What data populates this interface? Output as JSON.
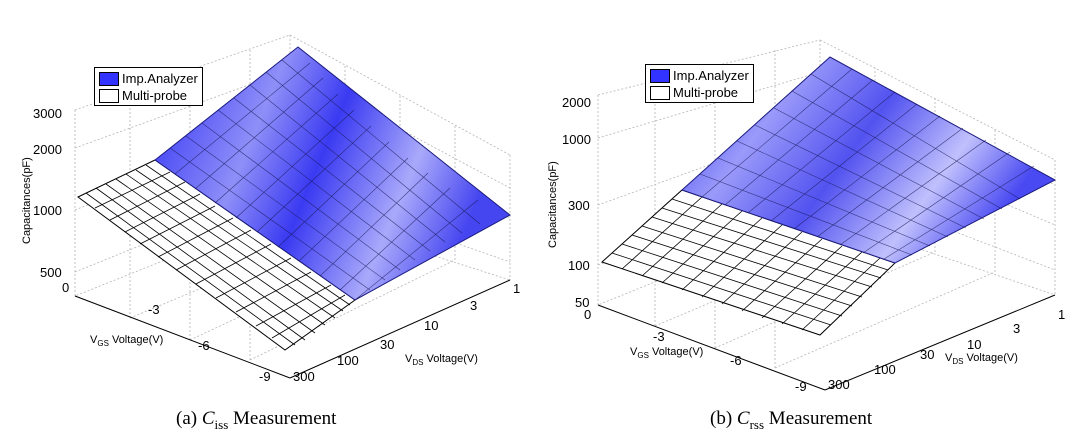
{
  "chart_data": [
    {
      "type": "surface",
      "zlabel": "Capacitances(pF)",
      "xlabel": {
        "main": "V",
        "sub": "DS",
        "rest": " Voltage(V)"
      },
      "ylabel": {
        "main": "V",
        "sub": "GS",
        "rest": " Voltage(V)"
      },
      "z_ticks": [
        "3000",
        "2000",
        "1000",
        "500"
      ],
      "vds_ticks": [
        "1",
        "3",
        "10",
        "30",
        "100",
        "300"
      ],
      "vgs_ticks": [
        "0",
        "-3",
        "-6",
        "-9"
      ],
      "legend": [
        "Imp.Analyzer",
        "Multi-probe"
      ],
      "caption": {
        "prefix": "(a) ",
        "C": "C",
        "sub": "iss",
        "suffix": " Measurement"
      },
      "zlim": [
        500,
        3000
      ],
      "z_scale": "log",
      "xlim_vds": [
        1,
        300
      ],
      "x_scale": "log",
      "ylim_vgs": [
        -9,
        0
      ],
      "grid": true,
      "legend_placement": "top-left",
      "surface_corners_pF": {
        "vds1_vgs0": 2700,
        "vds300_vgs0": 1150,
        "vds1_vgs-9": 950,
        "vds300_vgs-9": 500
      }
    },
    {
      "type": "surface",
      "zlabel": "Capacitances(pF)",
      "xlabel": {
        "main": "V",
        "sub": "DS",
        "rest": " Voltage(V)"
      },
      "ylabel": {
        "main": "V",
        "sub": "GS",
        "rest": " Voltage(V)"
      },
      "z_ticks": [
        "2000",
        "1000",
        "300",
        "100",
        "50"
      ],
      "vds_ticks": [
        "1",
        "3",
        "10",
        "30",
        "100",
        "300"
      ],
      "vgs_ticks": [
        "0",
        "-3",
        "-6",
        "-9"
      ],
      "legend": [
        "Imp.Analyzer",
        "Multi-probe"
      ],
      "caption": {
        "prefix": "(b) ",
        "C": "C",
        "sub": "rss",
        "suffix": " Measurement"
      },
      "zlim": [
        50,
        2000
      ],
      "z_scale": "log",
      "xlim_vds": [
        1,
        300
      ],
      "x_scale": "log",
      "ylim_vgs": [
        -9,
        0
      ],
      "grid": true,
      "legend_placement": "top-left",
      "surface_corners_pF": {
        "vds1_vgs0": 1400,
        "vds300_vgs0": 140,
        "vds1_vgs-9": 900,
        "vds300_vgs-9": 75
      }
    }
  ],
  "colors": {
    "imp_analyzer": "#3333ff",
    "multi_probe": "#ffffff",
    "grid": "#aaaaaa",
    "mesh": "#000000"
  }
}
